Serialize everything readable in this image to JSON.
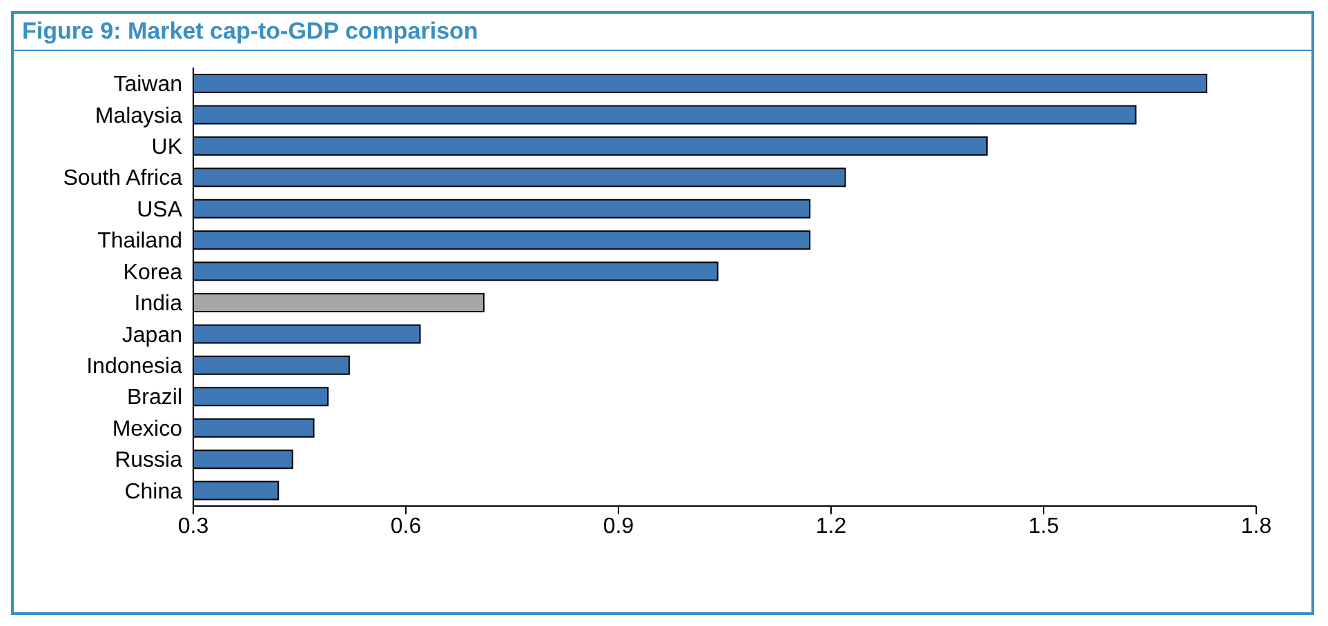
{
  "chart_data": {
    "type": "bar",
    "orientation": "horizontal",
    "title": "Figure 9: Market cap-to-GDP comparison",
    "categories": [
      "Taiwan",
      "Malaysia",
      "UK",
      "South Africa",
      "USA",
      "Thailand",
      "Korea",
      "India",
      "Japan",
      "Indonesia",
      "Brazil",
      "Mexico",
      "Russia",
      "China"
    ],
    "values": [
      1.73,
      1.63,
      1.42,
      1.22,
      1.17,
      1.17,
      1.04,
      0.71,
      0.62,
      0.52,
      0.49,
      0.47,
      0.44,
      0.42
    ],
    "colors": [
      "#3f78b5",
      "#3f78b5",
      "#3f78b5",
      "#3f78b5",
      "#3f78b5",
      "#3f78b5",
      "#3f78b5",
      "#a6a6a6",
      "#3f78b5",
      "#3f78b5",
      "#3f78b5",
      "#3f78b5",
      "#3f78b5",
      "#3f78b5"
    ],
    "xlim": [
      0.3,
      1.8
    ],
    "xticks": [
      0.3,
      0.6,
      0.9,
      1.2,
      1.5,
      1.8
    ],
    "grid": false,
    "legend": false
  }
}
